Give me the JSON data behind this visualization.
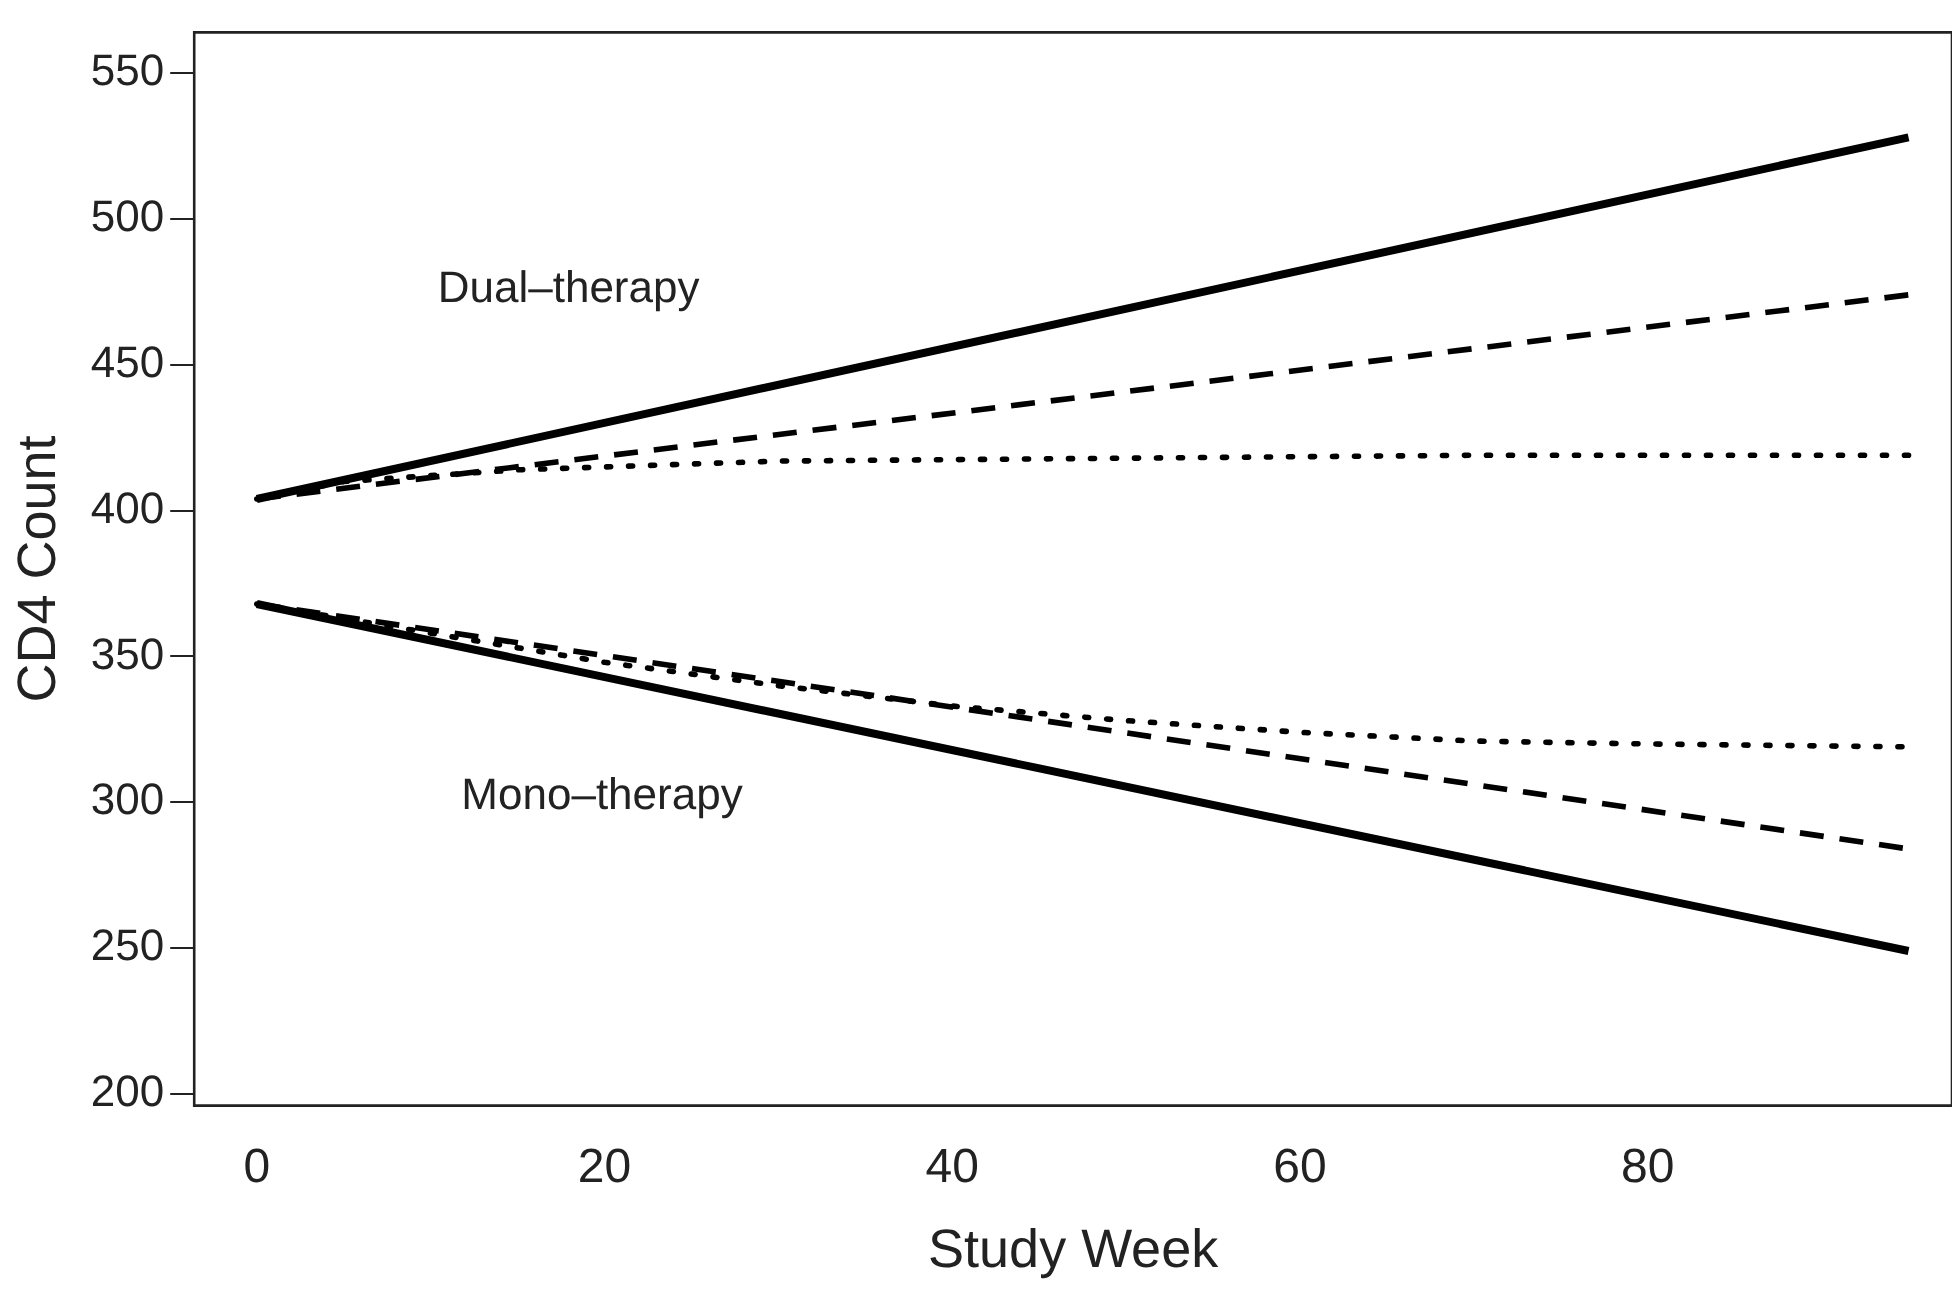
{
  "chart_data": {
    "type": "line",
    "xlabel": "Study Week",
    "ylabel": "CD4 Count",
    "xlim": [
      -3.6,
      97.5
    ],
    "ylim": [
      196,
      564
    ],
    "xticks": [
      0,
      20,
      40,
      60,
      80
    ],
    "yticks": [
      200,
      250,
      300,
      350,
      400,
      450,
      500,
      550
    ],
    "grid": false,
    "legend": false,
    "marker": "none",
    "series": [
      {
        "color": "#000000",
        "line_style": "solid",
        "x": [
          0,
          95
        ],
        "values": [
          404,
          528
        ]
      },
      {
        "color": "#000000",
        "line_style": "dashed",
        "x": [
          0,
          95
        ],
        "values": [
          404,
          474
        ]
      },
      {
        "color": "#000000",
        "line_style": "dotted",
        "x": [
          0,
          5,
          15,
          30,
          50,
          70,
          95
        ],
        "values": [
          404,
          410,
          414,
          417,
          418,
          419,
          419
        ]
      },
      {
        "color": "#000000",
        "line_style": "solid",
        "x": [
          0,
          95
        ],
        "values": [
          368,
          249
        ]
      },
      {
        "color": "#000000",
        "line_style": "dashed",
        "x": [
          0,
          95
        ],
        "values": [
          368,
          284
        ]
      },
      {
        "color": "#000000",
        "line_style": "dotted",
        "x": [
          0,
          10,
          20,
          30,
          40,
          50,
          60,
          70,
          80,
          95
        ],
        "values": [
          368,
          358,
          348,
          340,
          333,
          328,
          324,
          321,
          320,
          319
        ]
      }
    ],
    "annotations": [
      "Dual–therapy",
      "Mono–therapy"
    ]
  }
}
